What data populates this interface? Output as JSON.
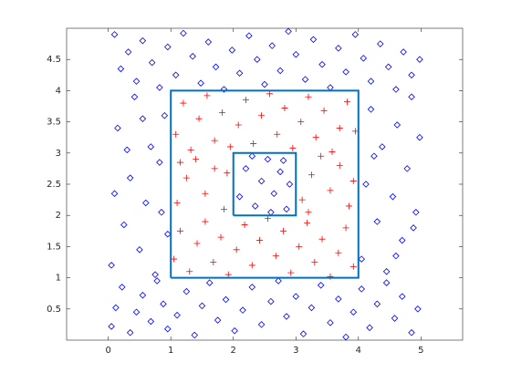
{
  "chart_data": {
    "type": "scatter",
    "xlim": [
      -0.6667,
      5.6667
    ],
    "ylim": [
      0,
      5
    ],
    "xticks": [
      0,
      1,
      2,
      3,
      4,
      5
    ],
    "yticks": [
      0.5,
      1,
      1.5,
      2,
      2.5,
      3,
      3.5,
      4,
      4.5
    ],
    "series": [
      {
        "mode": "markers",
        "marker": "diamond",
        "color": "#0000ff",
        "x": [
          0.05,
          0.12,
          0.22,
          0.35,
          0.45,
          0.55,
          0.68,
          0.78,
          0.88,
          0.95,
          1.1,
          1.25,
          1.38,
          1.5,
          1.62,
          1.75,
          1.88,
          2.02,
          2.15,
          2.3,
          2.45,
          2.6,
          2.72,
          2.85,
          3.0,
          3.12,
          3.25,
          3.4,
          3.55,
          3.68,
          3.8,
          3.92,
          4.05,
          4.18,
          4.3,
          4.45,
          4.58,
          4.7,
          4.85,
          4.95,
          0.1,
          0.2,
          0.32,
          0.45,
          0.55,
          0.7,
          0.82,
          0.95,
          1.08,
          1.2,
          1.35,
          1.48,
          1.6,
          1.72,
          1.85,
          1.98,
          2.1,
          2.25,
          2.38,
          2.5,
          2.62,
          2.75,
          2.88,
          3.0,
          3.15,
          3.28,
          3.42,
          3.55,
          3.68,
          3.8,
          3.95,
          4.08,
          4.2,
          4.35,
          4.48,
          4.6,
          4.72,
          4.85,
          4.98,
          0.05,
          0.15,
          0.25,
          0.35,
          0.42,
          0.5,
          0.6,
          0.68,
          0.75,
          0.82,
          0.9,
          0.95,
          0.1,
          0.3,
          0.55,
          0.85,
          4.05,
          4.12,
          4.2,
          4.3,
          4.38,
          4.45,
          4.55,
          4.62,
          4.7,
          4.78,
          4.85,
          4.92,
          4.98,
          4.25,
          4.6,
          4.88,
          2.1,
          2.2,
          2.35,
          2.45,
          2.55,
          2.65,
          2.75,
          2.85,
          2.9,
          2.3,
          2.6,
          2.8
        ],
        "y": [
          0.22,
          0.52,
          0.85,
          0.12,
          0.45,
          0.72,
          0.3,
          0.95,
          0.58,
          0.18,
          0.4,
          0.78,
          0.08,
          0.55,
          0.92,
          0.32,
          0.65,
          0.15,
          0.48,
          0.85,
          0.25,
          0.62,
          0.95,
          0.38,
          0.7,
          0.1,
          0.52,
          0.88,
          0.28,
          0.66,
          0.05,
          0.45,
          0.82,
          0.2,
          0.58,
          0.92,
          0.35,
          0.7,
          0.12,
          0.5,
          4.9,
          4.35,
          4.62,
          4.15,
          4.8,
          4.45,
          4.05,
          4.7,
          4.25,
          4.92,
          4.55,
          4.12,
          4.78,
          4.38,
          4.02,
          4.65,
          4.28,
          4.88,
          4.5,
          4.1,
          4.72,
          4.32,
          4.95,
          4.58,
          4.18,
          4.82,
          4.42,
          4.05,
          4.68,
          4.3,
          4.9,
          4.52,
          4.15,
          4.75,
          4.38,
          4.02,
          4.62,
          4.25,
          4.5,
          1.2,
          3.4,
          1.85,
          2.6,
          3.9,
          1.45,
          2.2,
          3.1,
          1.05,
          2.85,
          3.6,
          1.7,
          2.35,
          3.05,
          3.55,
          2.05,
          1.3,
          2.5,
          3.7,
          1.9,
          3.1,
          1.1,
          2.3,
          3.45,
          1.6,
          2.75,
          3.9,
          2.05,
          3.25,
          2.95,
          1.35,
          1.8,
          2.3,
          2.75,
          2.15,
          2.55,
          2.9,
          2.35,
          2.7,
          2.1,
          2.5,
          2.95,
          2.05,
          2.88
        ]
      },
      {
        "mode": "markers",
        "marker": "plus",
        "color": "#ff0000",
        "x": [
          1.05,
          1.15,
          1.3,
          1.42,
          1.55,
          1.68,
          1.8,
          1.92,
          2.05,
          2.18,
          2.3,
          2.42,
          2.55,
          2.68,
          2.8,
          2.92,
          3.05,
          3.18,
          3.3,
          3.42,
          3.55,
          3.68,
          3.8,
          3.92,
          1.08,
          1.2,
          1.32,
          1.45,
          1.58,
          1.7,
          1.82,
          1.95,
          2.08,
          2.2,
          2.32,
          2.45,
          2.58,
          2.7,
          2.82,
          2.95,
          3.08,
          3.2,
          3.32,
          3.45,
          3.58,
          3.7,
          3.82,
          3.95,
          1.1,
          1.25,
          1.4,
          1.55,
          1.7,
          1.85,
          1.9,
          1.15,
          3.1,
          3.25,
          3.4,
          3.55,
          3.7,
          3.85,
          3.92,
          3.2
        ],
        "y": [
          1.3,
          1.75,
          1.1,
          1.55,
          1.9,
          1.25,
          1.65,
          1.05,
          1.45,
          1.85,
          1.2,
          1.6,
          1.95,
          1.35,
          1.75,
          1.08,
          1.5,
          1.88,
          1.25,
          1.62,
          1.02,
          1.4,
          1.8,
          1.18,
          3.3,
          3.8,
          3.05,
          3.55,
          3.92,
          3.2,
          3.65,
          3.1,
          3.45,
          3.85,
          3.15,
          3.6,
          3.95,
          3.3,
          3.72,
          3.08,
          3.5,
          3.9,
          3.25,
          3.68,
          3.02,
          3.4,
          3.82,
          3.35,
          2.2,
          2.6,
          2.9,
          2.35,
          2.75,
          2.1,
          2.68,
          2.85,
          2.25,
          2.65,
          2.95,
          2.4,
          2.8,
          2.15,
          2.55,
          2.05
        ]
      },
      {
        "mode": "lines",
        "color": "#0072bd",
        "x": [
          1,
          4,
          4,
          1,
          1
        ],
        "y": [
          1,
          1,
          4,
          4,
          1
        ]
      },
      {
        "mode": "lines",
        "color": "#0072bd",
        "x": [
          2,
          3,
          3,
          2,
          2
        ],
        "y": [
          2,
          2,
          3,
          3,
          2
        ]
      }
    ]
  }
}
